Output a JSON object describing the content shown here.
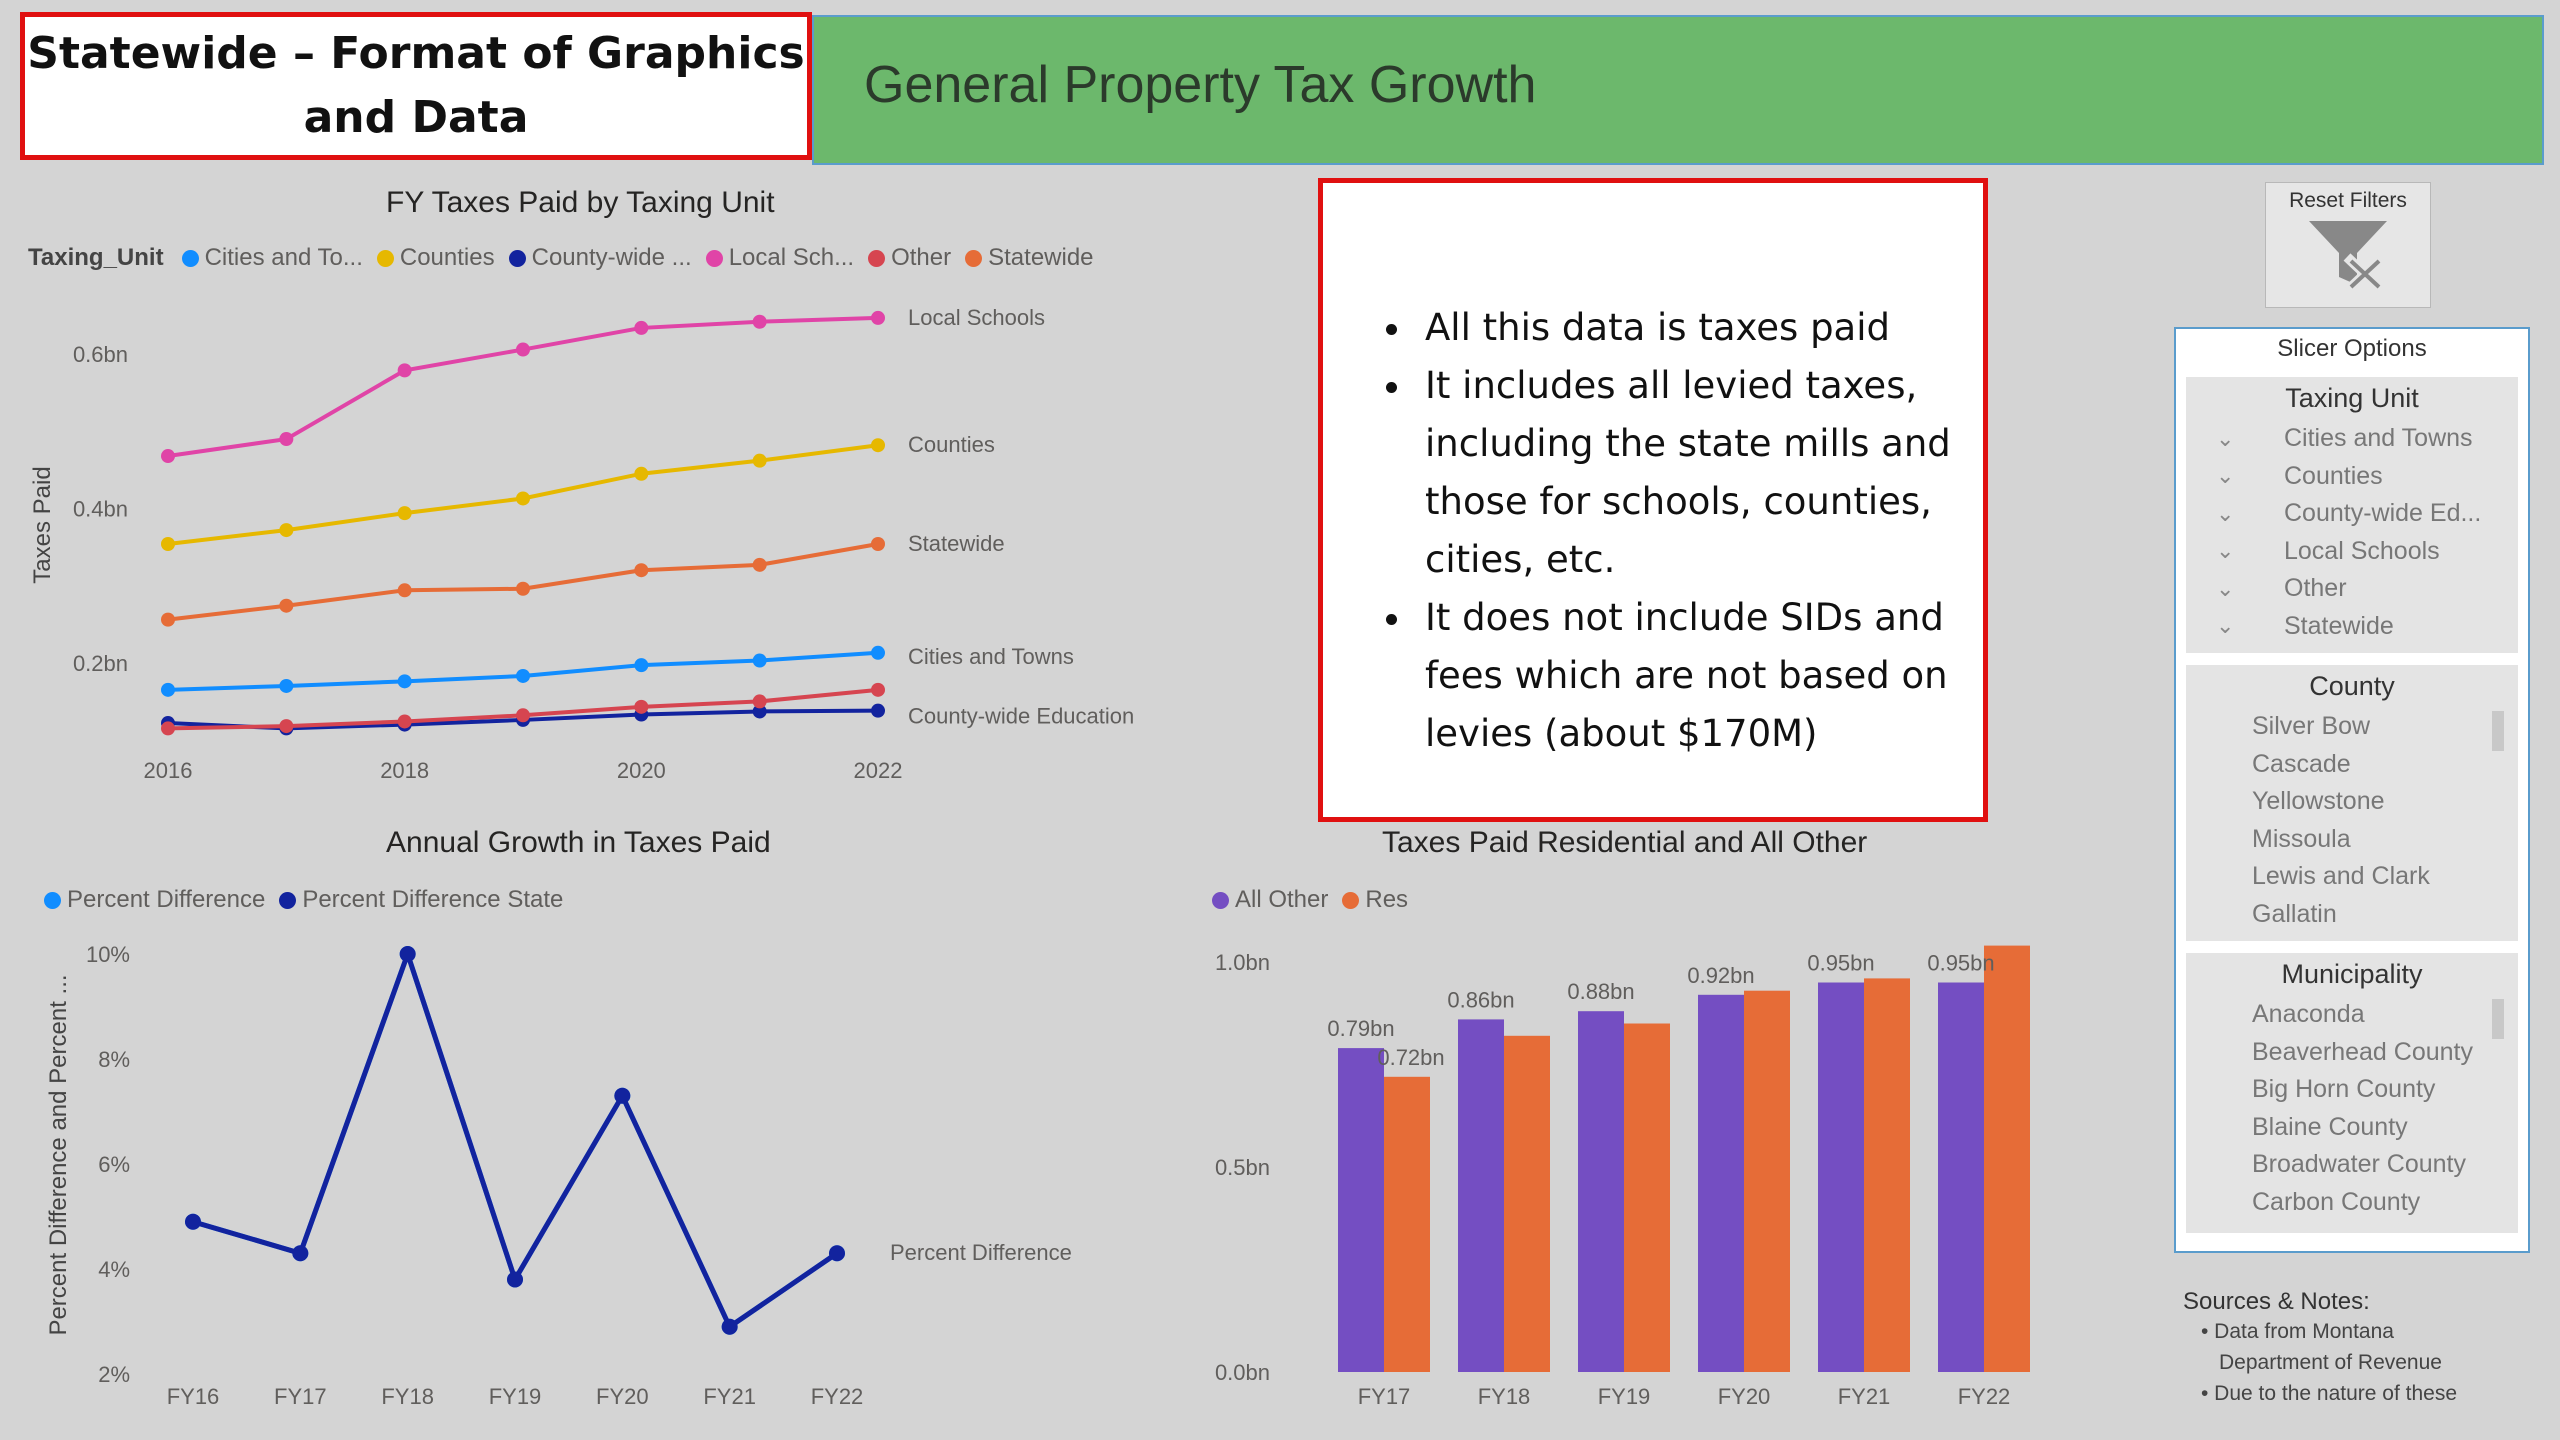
{
  "title_box": {
    "line1": "Statewide – Format of Graphics",
    "line2": "and Data"
  },
  "header": {
    "title": "General Property Tax Growth",
    "bar_color": "#6cb86c"
  },
  "chart_taxing_unit": {
    "title": "FY Taxes Paid by Taxing Unit",
    "legend_title": "Taxing_Unit",
    "ylabel": "Taxes Paid",
    "y_ticks": [
      "0.2bn",
      "0.4bn",
      "0.6bn"
    ],
    "x_ticks": [
      "2016",
      "2018",
      "2020",
      "2022"
    ]
  },
  "chart_growth": {
    "title": "Annual Growth in Taxes Paid",
    "ylabel": "Percent Difference and Percent ...",
    "y_ticks": [
      "2%",
      "4%",
      "6%",
      "8%",
      "10%"
    ],
    "x_ticks": [
      "FY16",
      "FY17",
      "FY18",
      "FY19",
      "FY20",
      "FY21",
      "FY22"
    ]
  },
  "chart_residential": {
    "title": "Taxes Paid Residential and All Other",
    "y_ticks": [
      "0.0bn",
      "0.5bn",
      "1.0bn"
    ],
    "x_ticks": [
      "FY17",
      "FY18",
      "FY19",
      "FY20",
      "FY21",
      "FY22"
    ]
  },
  "chart_data": [
    {
      "type": "line",
      "title": "FY Taxes Paid by Taxing Unit",
      "xlabel": "",
      "ylabel": "Taxes Paid",
      "x": [
        2016,
        2017,
        2018,
        2019,
        2020,
        2021,
        2022
      ],
      "xlim": [
        2016,
        2022
      ],
      "ylim": [
        0.1,
        0.7
      ],
      "legend_position": "top-left",
      "series": [
        {
          "name": "Cities and To...",
          "end_label": "Cities and Towns",
          "color": "#118dff",
          "values": [
            0.165,
            0.17,
            0.176,
            0.183,
            0.197,
            0.203,
            0.213
          ]
        },
        {
          "name": "Counties",
          "end_label": "Counties",
          "color": "#e6b800",
          "values": [
            0.354,
            0.372,
            0.394,
            0.413,
            0.445,
            0.462,
            0.482
          ]
        },
        {
          "name": "County-wide ...",
          "end_label": "County-wide Education",
          "color": "#12239e",
          "values": [
            0.122,
            0.115,
            0.12,
            0.126,
            0.133,
            0.137,
            0.138
          ]
        },
        {
          "name": "Local Sch...",
          "end_label": "Local Schools",
          "color": "#e044a7",
          "values": [
            0.468,
            0.49,
            0.579,
            0.606,
            0.634,
            0.642,
            0.647
          ]
        },
        {
          "name": "Other",
          "end_label": "",
          "color": "#d64550",
          "values": [
            0.115,
            0.118,
            0.124,
            0.132,
            0.143,
            0.15,
            0.165
          ]
        },
        {
          "name": "Statewide",
          "end_label": "Statewide",
          "color": "#e66c37",
          "values": [
            0.256,
            0.274,
            0.294,
            0.296,
            0.32,
            0.327,
            0.354
          ]
        }
      ]
    },
    {
      "type": "line",
      "title": "Annual Growth in Taxes Paid",
      "xlabel": "",
      "ylabel": "Percent Difference and Percent ...",
      "categories": [
        "FY16",
        "FY17",
        "FY18",
        "FY19",
        "FY20",
        "FY21",
        "FY22"
      ],
      "ylim": [
        2,
        10
      ],
      "legend_position": "top-left",
      "series": [
        {
          "name": "Percent Difference",
          "end_label": "Percent Difference",
          "color": "#118dff",
          "values": [
            4.9,
            4.3,
            10.0,
            3.8,
            7.3,
            2.9,
            4.3
          ]
        },
        {
          "name": "Percent Difference State",
          "color": "#12239e",
          "values": [
            4.9,
            4.3,
            10.0,
            3.8,
            7.3,
            2.9,
            4.3
          ]
        }
      ]
    },
    {
      "type": "bar",
      "title": "Taxes Paid Residential and All Other",
      "xlabel": "",
      "ylabel": "",
      "categories": [
        "FY17",
        "FY18",
        "FY19",
        "FY20",
        "FY21",
        "FY22"
      ],
      "ylim": [
        0,
        1.0
      ],
      "legend_position": "top-left",
      "series": [
        {
          "name": "All Other",
          "color": "#744ec2",
          "values": [
            0.79,
            0.86,
            0.88,
            0.92,
            0.95,
            0.95
          ],
          "labels": [
            "0.79bn",
            "0.86bn",
            "0.88bn",
            "0.92bn",
            "0.95bn",
            "0.95bn"
          ]
        },
        {
          "name": "Res",
          "color": "#e66c37",
          "values": [
            0.72,
            0.82,
            0.85,
            0.93,
            0.96,
            1.04
          ],
          "labels": [
            "0.72bn",
            "",
            "",
            "",
            "",
            ""
          ]
        }
      ]
    }
  ],
  "note_box": {
    "bullets": [
      "All this data is taxes paid",
      "It includes all levied taxes, including the state mills and those for schools, counties, cities, etc.",
      "It does not include SIDs and fees which are not based on levies (about $170M)"
    ]
  },
  "reset_filters": {
    "label": "Reset Filters",
    "icon": "clear-filter-icon"
  },
  "slicer_panel": {
    "title": "Slicer Options",
    "taxing_unit": {
      "header": "Taxing Unit",
      "items": [
        "Cities and Towns",
        "Counties",
        "County-wide Ed...",
        "Local Schools",
        "Other",
        "Statewide"
      ]
    },
    "county": {
      "header": "County",
      "items": [
        "Silver Bow",
        "Cascade",
        "Yellowstone",
        "Missoula",
        "Lewis and Clark",
        "Gallatin"
      ]
    },
    "municipality": {
      "header": "Municipality",
      "items": [
        "Anaconda",
        "Beaverhead County",
        "Big Horn County",
        "Blaine County",
        "Broadwater County",
        "Carbon County"
      ]
    }
  },
  "sources": {
    "title": "Sources & Notes:",
    "items": [
      "• Data from Montana",
      "Department of Revenue",
      "• Due to the nature of these"
    ]
  }
}
